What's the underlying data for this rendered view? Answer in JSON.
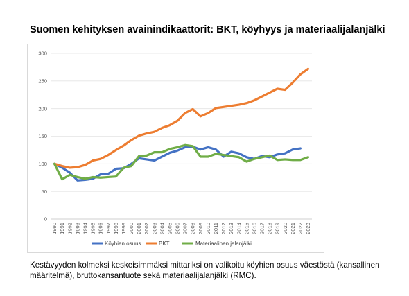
{
  "title": "Suomen kehityksen avainindikaattorit: BKT, köyhyys ja materiaalijalanjälki",
  "caption": "Kestävyyden kolmeksi keskeisimmäksi mittariksi on valikoitu köyhien osuus väestöstä (kansallinen määritelmä), bruttokansantuote sekä materiaalijalanjälki (RMC).",
  "chart_data": {
    "type": "line",
    "x": [
      1990,
      1991,
      1992,
      1993,
      1994,
      1995,
      1996,
      1997,
      1998,
      1999,
      2000,
      2001,
      2002,
      2003,
      2004,
      2005,
      2006,
      2007,
      2008,
      2009,
      2010,
      2011,
      2012,
      2013,
      2014,
      2015,
      2016,
      2017,
      2018,
      2019,
      2020,
      2021,
      2022,
      2023
    ],
    "ylim": [
      0,
      300
    ],
    "yticks": [
      0,
      50,
      100,
      150,
      200,
      250,
      300
    ],
    "grid": "horizontal",
    "legend_position": "bottom",
    "series": [
      {
        "name": "Köyhien osuus",
        "color": "#4472c4",
        "values": [
          100,
          93,
          84,
          70,
          71,
          73,
          81,
          82,
          91,
          92,
          100,
          110,
          108,
          106,
          113,
          120,
          124,
          130,
          131,
          126,
          130,
          126,
          113,
          122,
          119,
          112,
          109,
          114,
          112,
          117,
          119,
          126,
          128,
          null
        ]
      },
      {
        "name": "BKT",
        "color": "#ed7d31",
        "values": [
          100,
          96,
          93,
          94,
          98,
          106,
          109,
          116,
          125,
          133,
          143,
          151,
          155,
          158,
          165,
          170,
          178,
          192,
          199,
          186,
          192,
          201,
          203,
          205,
          207,
          210,
          215,
          222,
          229,
          236,
          234,
          247,
          262,
          272
        ]
      },
      {
        "name": "Materiaalinen jalanjälki",
        "color": "#70ad47",
        "values": [
          100,
          72,
          80,
          76,
          73,
          76,
          75,
          76,
          77,
          93,
          96,
          114,
          115,
          121,
          121,
          127,
          130,
          134,
          132,
          113,
          113,
          118,
          116,
          114,
          112,
          104,
          109,
          112,
          115,
          107,
          108,
          107,
          107,
          112
        ]
      }
    ]
  }
}
